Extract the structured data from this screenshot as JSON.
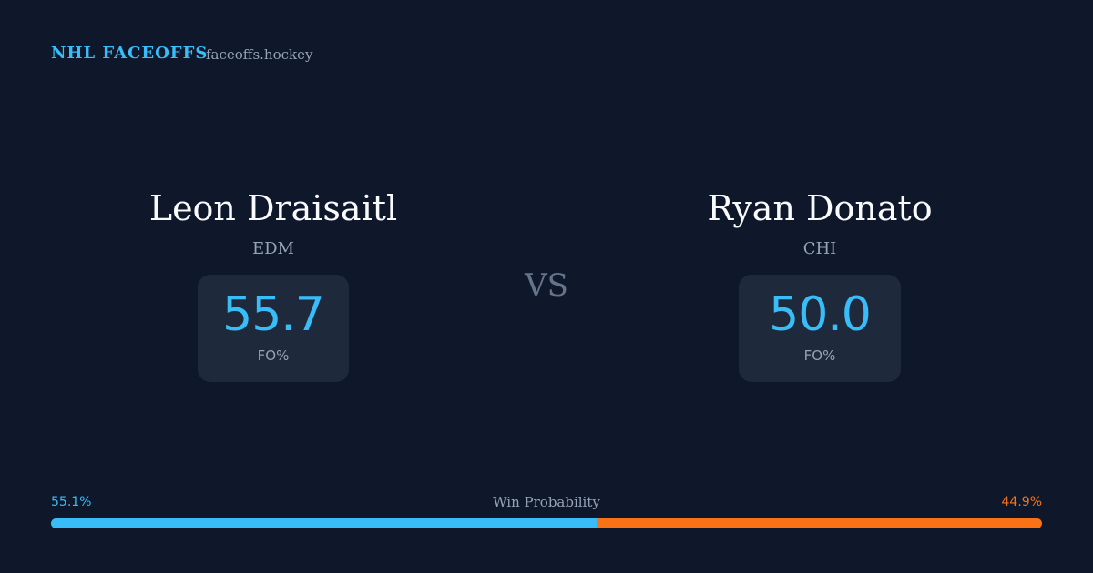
{
  "header": {
    "title": "NHL FACEOFFS",
    "site": "faceoffs.hockey"
  },
  "players": [
    {
      "name": "Leon Draisaitl",
      "team": "EDM",
      "fo_pct": "55.7",
      "fo_label": "FO%"
    },
    {
      "name": "Ryan Donato",
      "team": "CHI",
      "fo_pct": "50.0",
      "fo_label": "FO%"
    }
  ],
  "vs": "VS",
  "win_probability": {
    "label": "Win Probability",
    "left": {
      "value": 55.1,
      "label": "55.1%",
      "color": "#38bdf8"
    },
    "right": {
      "value": 44.9,
      "label": "44.9%",
      "color": "#f97316"
    }
  }
}
